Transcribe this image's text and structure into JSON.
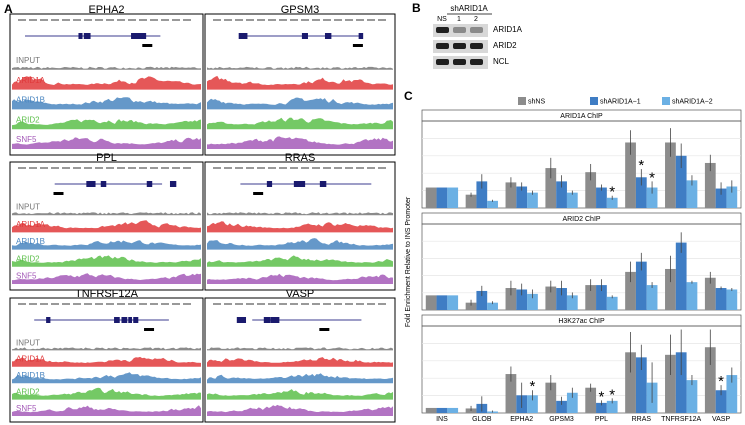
{
  "panel_a": {
    "letter": "A",
    "genes": [
      "EPHA2",
      "GPSM3",
      "PPL",
      "RRAS",
      "TNFRSF12A",
      "VASP"
    ],
    "tracks": [
      {
        "name": "INPUT",
        "color": "#777777"
      },
      {
        "name": "ARID1A",
        "color": "#e0393b"
      },
      {
        "name": "ARID1B",
        "color": "#4a86c0"
      },
      {
        "name": "ARID2",
        "color": "#5cbf4a"
      },
      {
        "name": "SNF5",
        "color": "#a45ab8"
      }
    ]
  },
  "panel_b": {
    "letter": "B",
    "treatment": "shARID1A",
    "lanes": [
      "NS",
      "1",
      "2"
    ],
    "proteins": [
      "ARID1A",
      "ARID2",
      "NCL"
    ]
  },
  "chart_data": {
    "type": "bar",
    "letter": "C",
    "ylabel": "Fold Enrichment Relative to INS Promoter",
    "categories": [
      "INS",
      "GLOB",
      "EPHA2",
      "GPSM3",
      "PPL",
      "RRAS",
      "TNFRSF12A",
      "VASP"
    ],
    "series": [
      {
        "name": "shNS",
        "color": "#8c8c8c"
      },
      {
        "name": "shARID1A−1",
        "color": "#3f7dc4"
      },
      {
        "name": "shARID1A−2",
        "color": "#6bb0e4"
      }
    ],
    "panels": [
      {
        "title": "ARID1A  ChIP",
        "ylim": [
          0,
          4.2
        ],
        "values": [
          [
            1,
            1,
            1
          ],
          [
            0.65,
            1.3,
            0.35
          ],
          [
            1.25,
            1.05,
            0.75
          ],
          [
            1.95,
            1.3,
            0.75
          ],
          [
            1.75,
            1.0,
            0.5
          ],
          [
            3.2,
            1.5,
            1.0
          ],
          [
            3.2,
            2.55,
            1.35
          ],
          [
            2.2,
            0.95,
            1.05
          ]
        ],
        "errors": [
          [
            0,
            0,
            0
          ],
          [
            0.1,
            0.35,
            0.05
          ],
          [
            0.25,
            0.2,
            0.1
          ],
          [
            0.5,
            0.3,
            0.1
          ],
          [
            0.4,
            0.15,
            0.1
          ],
          [
            0.6,
            0.4,
            0.3
          ],
          [
            0.7,
            0.6,
            0.25
          ],
          [
            0.4,
            0.3,
            0.3
          ]
        ],
        "annotations": [
          {
            "text": "*",
            "category": 4,
            "series": 2
          },
          {
            "text": "*",
            "category": 5,
            "series": 1
          },
          {
            "text": "*",
            "category": 5,
            "series": 2
          }
        ]
      },
      {
        "title": "ARID2  ChIP",
        "ylim": [
          0,
          5.8
        ],
        "values": [
          [
            1,
            1,
            1
          ],
          [
            0.5,
            1.3,
            0.5
          ],
          [
            1.5,
            1.4,
            1.1
          ],
          [
            1.6,
            1.5,
            1.0
          ],
          [
            1.7,
            1.7,
            0.9
          ],
          [
            2.6,
            3.3,
            1.7
          ],
          [
            2.8,
            4.6,
            1.9
          ],
          [
            2.2,
            1.5,
            1.4
          ]
        ],
        "errors": [
          [
            0,
            0,
            0
          ],
          [
            0.2,
            0.35,
            0.1
          ],
          [
            0.5,
            0.4,
            0.3
          ],
          [
            0.4,
            0.5,
            0.2
          ],
          [
            0.4,
            0.4,
            0.1
          ],
          [
            0.7,
            0.6,
            0.2
          ],
          [
            0.9,
            0.7,
            0.1
          ],
          [
            0.4,
            0.1,
            0.1
          ]
        ],
        "annotations": []
      },
      {
        "title": "H3K27ac  ChIP",
        "ylim": [
          0,
          17
        ],
        "values": [
          [
            1,
            1,
            1
          ],
          [
            0.9,
            1.8,
            0.3
          ],
          [
            7.7,
            3.5,
            3.5
          ],
          [
            6,
            2.4,
            4
          ],
          [
            5,
            2,
            2.4
          ],
          [
            12,
            11,
            6
          ],
          [
            11.5,
            12,
            6.5
          ],
          [
            13,
            4.5,
            7.5
          ]
        ],
        "errors": [
          [
            0,
            0,
            0
          ],
          [
            0.5,
            1.5,
            0.2
          ],
          [
            1.5,
            2.5,
            1.0
          ],
          [
            1.5,
            0.8,
            1.0
          ],
          [
            0.8,
            0.5,
            0.5
          ],
          [
            4,
            2.5,
            4
          ],
          [
            4,
            4.5,
            1.0
          ],
          [
            3.5,
            1,
            1.5
          ]
        ],
        "annotations": [
          {
            "text": "*",
            "category": 2,
            "series": 2
          },
          {
            "text": "*",
            "category": 4,
            "series": 1
          },
          {
            "text": "*",
            "category": 4,
            "series": 2
          },
          {
            "text": "*",
            "category": 7,
            "series": 1
          }
        ]
      }
    ]
  }
}
